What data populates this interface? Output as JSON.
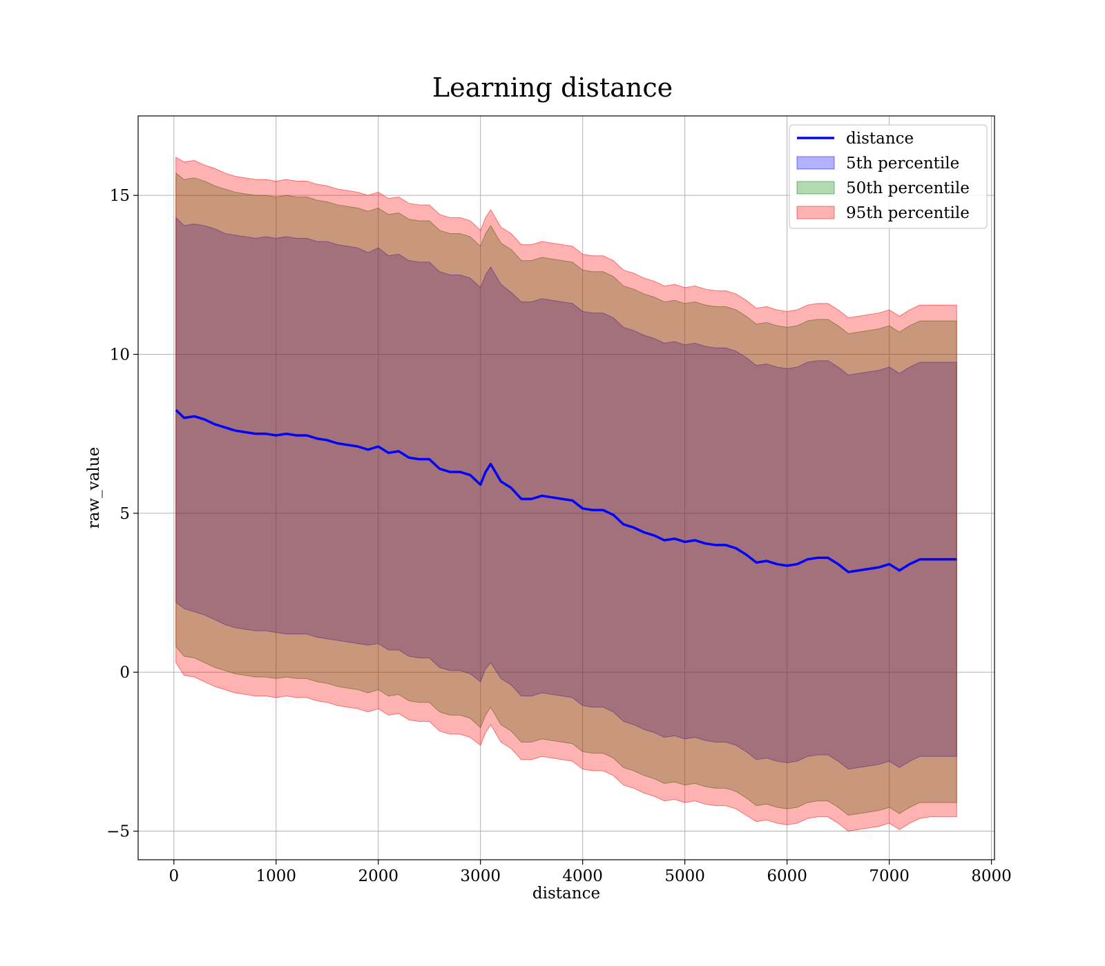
{
  "chart_data": {
    "type": "line",
    "title": "Learning distance",
    "xlabel": "distance",
    "ylabel": "raw_value",
    "xlim": [
      -350,
      8030
    ],
    "ylim": [
      -5.9,
      17.5
    ],
    "x_ticks": [
      0,
      1000,
      2000,
      3000,
      4000,
      5000,
      6000,
      7000,
      8000
    ],
    "x_tick_labels": [
      "0",
      "1000",
      "2000",
      "3000",
      "4000",
      "5000",
      "6000",
      "7000",
      "8000"
    ],
    "y_ticks": [
      -5,
      0,
      5,
      10,
      15
    ],
    "y_tick_labels": [
      "−5",
      "0",
      "5",
      "10",
      "15"
    ],
    "grid": true,
    "legend_position": "top-right",
    "x": [
      20,
      100,
      200,
      300,
      400,
      500,
      600,
      700,
      800,
      900,
      1000,
      1100,
      1200,
      1300,
      1400,
      1500,
      1600,
      1700,
      1800,
      1900,
      2000,
      2100,
      2200,
      2300,
      2400,
      2500,
      2600,
      2700,
      2800,
      2900,
      3000,
      3050,
      3100,
      3200,
      3300,
      3400,
      3500,
      3600,
      3700,
      3800,
      3900,
      4000,
      4100,
      4200,
      4300,
      4400,
      4500,
      4600,
      4700,
      4800,
      4900,
      5000,
      5100,
      5200,
      5300,
      5400,
      5500,
      5600,
      5700,
      5800,
      5900,
      6000,
      6100,
      6200,
      6300,
      6400,
      6500,
      6600,
      6700,
      6800,
      6900,
      7000,
      7100,
      7200,
      7300,
      7400,
      7500,
      7600,
      7660
    ],
    "series": [
      {
        "name": "distance",
        "kind": "line",
        "color": "#0000ff",
        "values": [
          8.25,
          8.0,
          8.05,
          7.95,
          7.8,
          7.7,
          7.6,
          7.55,
          7.5,
          7.5,
          7.45,
          7.5,
          7.45,
          7.45,
          7.35,
          7.3,
          7.2,
          7.15,
          7.1,
          7.0,
          7.1,
          6.9,
          6.95,
          6.75,
          6.7,
          6.7,
          6.4,
          6.3,
          6.3,
          6.2,
          5.9,
          6.3,
          6.55,
          6.0,
          5.8,
          5.45,
          5.45,
          5.55,
          5.5,
          5.45,
          5.4,
          5.15,
          5.1,
          5.1,
          4.95,
          4.65,
          4.55,
          4.4,
          4.3,
          4.15,
          4.2,
          4.1,
          4.15,
          4.05,
          4.0,
          4.0,
          3.9,
          3.7,
          3.45,
          3.5,
          3.4,
          3.35,
          3.4,
          3.55,
          3.6,
          3.6,
          3.4,
          3.15,
          3.2,
          3.25,
          3.3,
          3.4,
          3.2,
          3.4,
          3.55,
          3.55,
          3.55,
          3.55,
          3.55
        ]
      },
      {
        "name": "5th percentile",
        "kind": "band",
        "color": "#0000ff",
        "opacity": 0.3,
        "lower": [
          2.2,
          2.0,
          1.9,
          1.8,
          1.65,
          1.5,
          1.4,
          1.35,
          1.3,
          1.3,
          1.25,
          1.2,
          1.2,
          1.2,
          1.1,
          1.05,
          1.0,
          0.95,
          0.9,
          0.85,
          0.9,
          0.7,
          0.7,
          0.5,
          0.45,
          0.45,
          0.15,
          0.05,
          0.05,
          -0.05,
          -0.3,
          0.1,
          0.3,
          -0.2,
          -0.4,
          -0.75,
          -0.75,
          -0.65,
          -0.7,
          -0.75,
          -0.8,
          -1.05,
          -1.1,
          -1.1,
          -1.25,
          -1.55,
          -1.65,
          -1.8,
          -1.9,
          -2.05,
          -2.0,
          -2.1,
          -2.05,
          -2.15,
          -2.2,
          -2.2,
          -2.3,
          -2.5,
          -2.75,
          -2.7,
          -2.8,
          -2.85,
          -2.8,
          -2.65,
          -2.6,
          -2.6,
          -2.8,
          -3.05,
          -3.0,
          -2.95,
          -2.9,
          -2.8,
          -3.0,
          -2.8,
          -2.65,
          -2.65,
          -2.65,
          -2.65,
          -2.65
        ],
        "upper": [
          14.3,
          14.05,
          14.1,
          14.05,
          13.95,
          13.8,
          13.75,
          13.7,
          13.65,
          13.7,
          13.65,
          13.7,
          13.65,
          13.65,
          13.55,
          13.55,
          13.45,
          13.4,
          13.35,
          13.2,
          13.35,
          13.1,
          13.15,
          12.95,
          12.9,
          12.9,
          12.6,
          12.5,
          12.5,
          12.4,
          12.1,
          12.5,
          12.75,
          12.2,
          11.95,
          11.65,
          11.65,
          11.75,
          11.7,
          11.65,
          11.6,
          11.35,
          11.3,
          11.3,
          11.15,
          10.85,
          10.75,
          10.6,
          10.5,
          10.35,
          10.4,
          10.3,
          10.35,
          10.25,
          10.2,
          10.2,
          10.1,
          9.9,
          9.65,
          9.7,
          9.6,
          9.55,
          9.6,
          9.75,
          9.8,
          9.8,
          9.6,
          9.35,
          9.4,
          9.45,
          9.5,
          9.6,
          9.4,
          9.6,
          9.75,
          9.75,
          9.75,
          9.75,
          9.75
        ]
      },
      {
        "name": "50th percentile",
        "kind": "band",
        "color": "#008000",
        "opacity": 0.3,
        "lower": [
          0.8,
          0.5,
          0.45,
          0.3,
          0.15,
          0.05,
          -0.05,
          -0.1,
          -0.15,
          -0.15,
          -0.2,
          -0.15,
          -0.2,
          -0.2,
          -0.3,
          -0.35,
          -0.45,
          -0.5,
          -0.55,
          -0.65,
          -0.55,
          -0.75,
          -0.7,
          -0.9,
          -0.95,
          -0.95,
          -1.25,
          -1.35,
          -1.35,
          -1.45,
          -1.75,
          -1.35,
          -1.1,
          -1.65,
          -1.85,
          -2.2,
          -2.2,
          -2.1,
          -2.15,
          -2.2,
          -2.25,
          -2.5,
          -2.55,
          -2.55,
          -2.7,
          -3.0,
          -3.1,
          -3.25,
          -3.35,
          -3.5,
          -3.45,
          -3.55,
          -3.5,
          -3.6,
          -3.65,
          -3.65,
          -3.75,
          -3.95,
          -4.2,
          -4.15,
          -4.25,
          -4.3,
          -4.25,
          -4.1,
          -4.05,
          -4.05,
          -4.25,
          -4.5,
          -4.45,
          -4.4,
          -4.35,
          -4.25,
          -4.45,
          -4.25,
          -4.1,
          -4.1,
          -4.1,
          -4.1,
          -4.1
        ],
        "upper": [
          15.7,
          15.5,
          15.55,
          15.45,
          15.3,
          15.2,
          15.1,
          15.05,
          15.0,
          15.0,
          14.95,
          15.0,
          14.95,
          14.95,
          14.85,
          14.8,
          14.7,
          14.65,
          14.6,
          14.5,
          14.6,
          14.4,
          14.45,
          14.25,
          14.2,
          14.2,
          13.9,
          13.8,
          13.8,
          13.7,
          13.4,
          13.8,
          14.05,
          13.5,
          13.3,
          12.95,
          12.95,
          13.05,
          13.0,
          12.95,
          12.9,
          12.65,
          12.6,
          12.6,
          12.45,
          12.15,
          12.05,
          11.9,
          11.8,
          11.65,
          11.7,
          11.6,
          11.65,
          11.55,
          11.5,
          11.5,
          11.4,
          11.2,
          10.95,
          11.0,
          10.9,
          10.85,
          10.9,
          11.05,
          11.1,
          11.1,
          10.9,
          10.65,
          10.7,
          10.75,
          10.8,
          10.9,
          10.7,
          10.9,
          11.05,
          11.05,
          11.05,
          11.05,
          11.05
        ]
      },
      {
        "name": "95th percentile",
        "kind": "band",
        "color": "#ff0000",
        "opacity": 0.3,
        "lower": [
          0.3,
          -0.1,
          -0.15,
          -0.3,
          -0.45,
          -0.55,
          -0.65,
          -0.7,
          -0.75,
          -0.75,
          -0.8,
          -0.75,
          -0.8,
          -0.8,
          -0.9,
          -0.95,
          -1.05,
          -1.1,
          -1.15,
          -1.25,
          -1.15,
          -1.35,
          -1.3,
          -1.5,
          -1.55,
          -1.55,
          -1.85,
          -1.95,
          -1.95,
          -2.05,
          -2.3,
          -1.9,
          -1.65,
          -2.2,
          -2.4,
          -2.75,
          -2.75,
          -2.65,
          -2.7,
          -2.75,
          -2.8,
          -3.05,
          -3.1,
          -3.1,
          -3.25,
          -3.55,
          -3.65,
          -3.8,
          -3.9,
          -4.05,
          -4.0,
          -4.1,
          -4.05,
          -4.15,
          -4.2,
          -4.2,
          -4.3,
          -4.5,
          -4.7,
          -4.65,
          -4.75,
          -4.8,
          -4.75,
          -4.6,
          -4.55,
          -4.55,
          -4.75,
          -5.0,
          -4.95,
          -4.9,
          -4.85,
          -4.75,
          -4.95,
          -4.75,
          -4.6,
          -4.55,
          -4.55,
          -4.55,
          -4.55
        ],
        "upper": [
          16.2,
          16.05,
          16.1,
          15.95,
          15.85,
          15.7,
          15.6,
          15.55,
          15.5,
          15.5,
          15.45,
          15.5,
          15.45,
          15.45,
          15.35,
          15.3,
          15.2,
          15.15,
          15.1,
          15.0,
          15.1,
          14.9,
          14.95,
          14.75,
          14.7,
          14.7,
          14.4,
          14.3,
          14.3,
          14.2,
          13.9,
          14.3,
          14.55,
          14.0,
          13.8,
          13.45,
          13.45,
          13.55,
          13.5,
          13.45,
          13.4,
          13.15,
          13.1,
          13.1,
          12.95,
          12.65,
          12.55,
          12.4,
          12.3,
          12.15,
          12.2,
          12.1,
          12.15,
          12.05,
          12.0,
          12.0,
          11.9,
          11.7,
          11.45,
          11.5,
          11.4,
          11.35,
          11.4,
          11.55,
          11.6,
          11.6,
          11.4,
          11.15,
          11.2,
          11.25,
          11.3,
          11.4,
          11.2,
          11.4,
          11.55,
          11.55,
          11.55,
          11.55,
          11.55
        ]
      }
    ]
  }
}
